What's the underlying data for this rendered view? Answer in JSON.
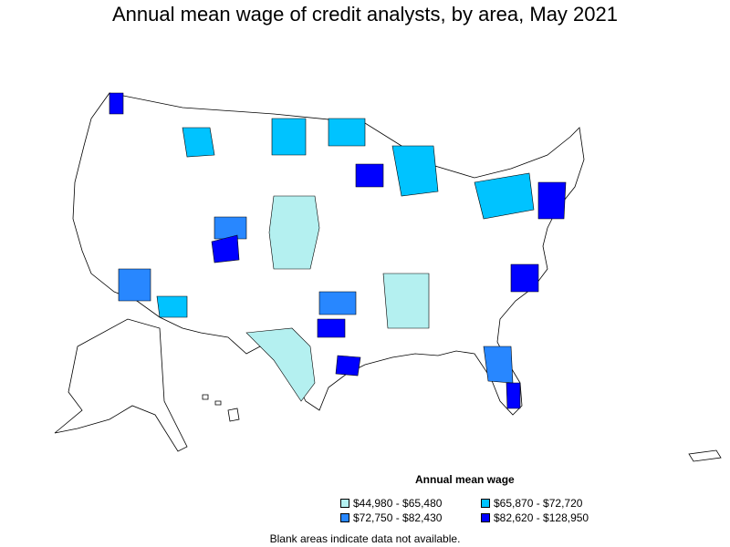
{
  "title": "Annual mean wage of credit analysts, by area, May 2021",
  "legend": {
    "title": "Annual mean wage",
    "items": [
      {
        "label": "$44,980 - $65,480",
        "color": "#b4f0f0"
      },
      {
        "label": "$65,870 - $72,720",
        "color": "#00c3ff"
      },
      {
        "label": "$72,750 - $82,430",
        "color": "#2887ff"
      },
      {
        "label": "$82,620 - $128,950",
        "color": "#0000ff"
      }
    ]
  },
  "footnote": "Blank areas indicate data not available."
}
